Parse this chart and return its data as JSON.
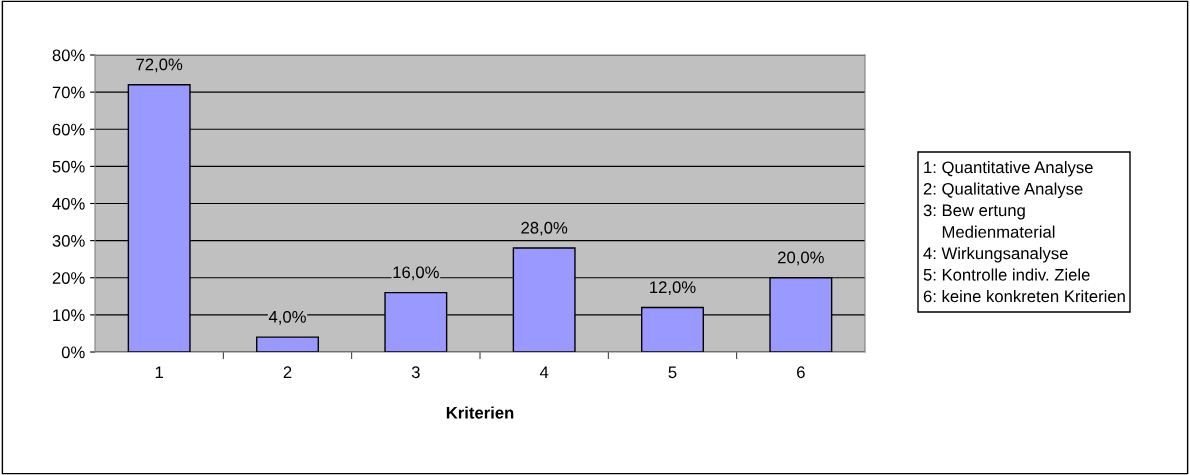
{
  "chart_data": {
    "type": "bar",
    "xlabel": "Kriterien",
    "categories": [
      "1",
      "2",
      "3",
      "4",
      "5",
      "6"
    ],
    "values": [
      72,
      4,
      16,
      28,
      12,
      20
    ],
    "value_labels": [
      "72,0%",
      "4,0%",
      "16,0%",
      "28,0%",
      "12,0%",
      "20,0%"
    ],
    "color": "#9999ff",
    "ylim": [
      0,
      80
    ],
    "yticks": [
      {
        "value": 0,
        "label": "0%"
      },
      {
        "value": 10,
        "label": "10%"
      },
      {
        "value": 20,
        "label": "20%"
      },
      {
        "value": 30,
        "label": "30%"
      },
      {
        "value": 40,
        "label": "40%"
      },
      {
        "value": 50,
        "label": "50%"
      },
      {
        "value": 60,
        "label": "60%"
      },
      {
        "value": 70,
        "label": "70%"
      },
      {
        "value": 80,
        "label": "80%"
      }
    ],
    "grid": "y",
    "annotations": [
      "1: Quantitative Analyse",
      "2: Qualitative Analyse",
      "3: Bew ertung\n    Medienmaterial",
      "4: Wirkungsanalyse",
      "5: Kontrolle indiv. Ziele",
      "6: keine konkreten Kriterien"
    ]
  }
}
